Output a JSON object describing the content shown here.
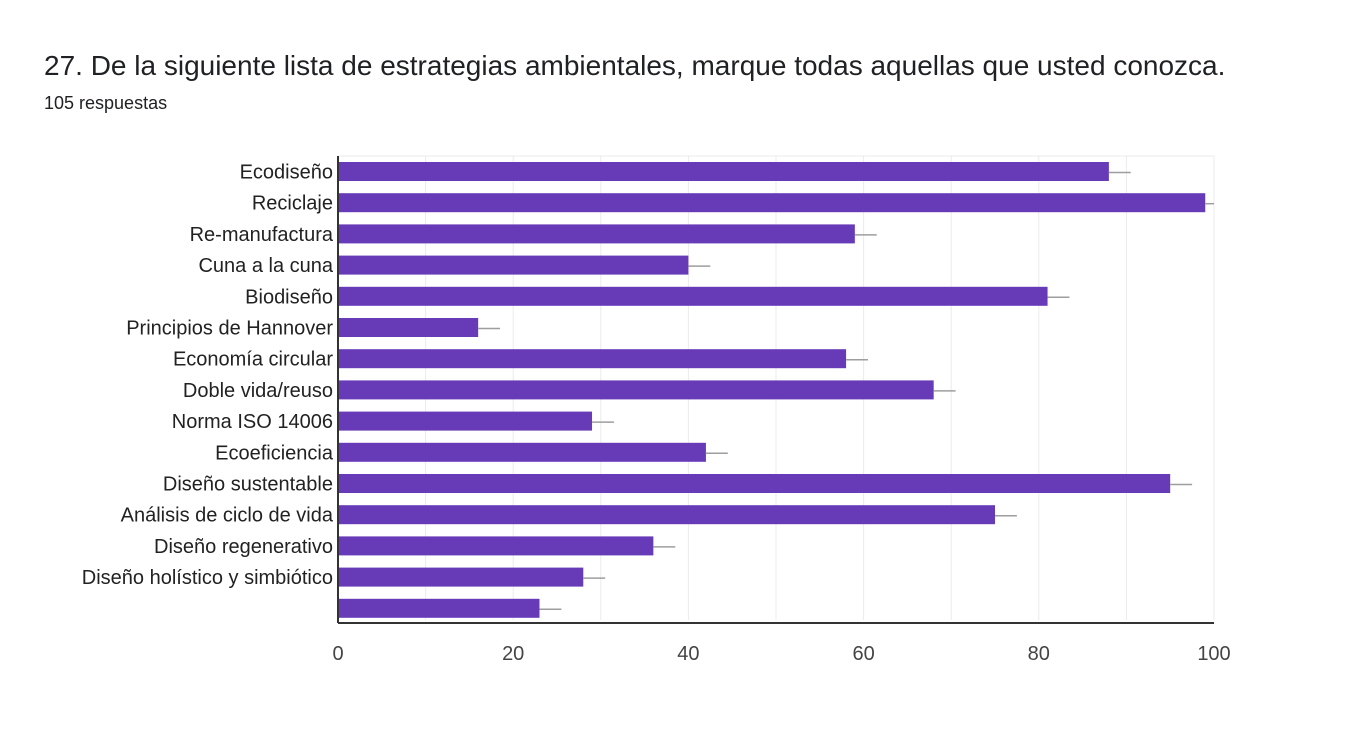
{
  "header": {
    "title": "27. De la siguiente lista de estrategias ambientales, marque todas aquellas que usted conozca.",
    "responses": "105 respuestas"
  },
  "colors": {
    "bar": "#673ab7",
    "error_bar": "#9e9e9e",
    "grid": "#ebebeb",
    "axis": "#333333",
    "title_text": "#202124"
  },
  "chart_data": {
    "type": "bar",
    "orientation": "horizontal",
    "categories": [
      "Ecodiseño",
      "Reciclaje",
      "Re-manufactura",
      "Cuna a la cuna",
      "Biodiseño",
      "Principios de Hannover",
      "Economía circular",
      "Doble vida/reuso",
      "Norma ISO 14006",
      "Ecoeficiencia",
      "Diseño sustentable",
      "Análisis de ciclo de vida",
      "Diseño regenerativo",
      "Diseño holístico y simbiótico",
      ""
    ],
    "values": [
      88,
      99,
      59,
      40,
      81,
      16,
      58,
      68,
      29,
      42,
      95,
      75,
      36,
      28,
      23
    ],
    "error_bar": 2.5,
    "xlim": [
      0,
      100
    ],
    "xticks": [
      0,
      20,
      40,
      60,
      80,
      100
    ],
    "grid": true,
    "legend": "none",
    "title": "",
    "xlabel": "",
    "ylabel": ""
  }
}
